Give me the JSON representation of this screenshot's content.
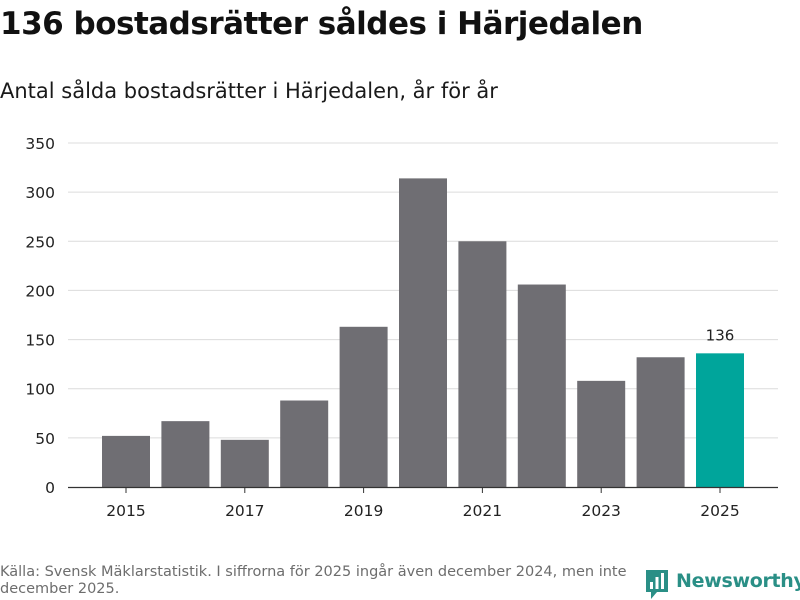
{
  "header": {
    "title": "136 bostadsrätter såldes i Härjedalen",
    "subtitle": "Antal sålda bostadsrätter i Härjedalen, år för år"
  },
  "footer": {
    "source": "Källa: Svensk Mäklarstatistik. I siffrorna för 2025 ingår även december 2024, men inte december 2025.",
    "brand": "Newsworthy"
  },
  "colors": {
    "bar": "#6f6e73",
    "highlight": "#00a59b",
    "grid": "#dcdcdc",
    "axis": "#333333",
    "brand": "#2a8f86"
  },
  "chart_data": {
    "type": "bar",
    "title": "136 bostadsrätter såldes i Härjedalen",
    "subtitle": "Antal sålda bostadsrätter i Härjedalen, år för år",
    "xlabel": "",
    "ylabel": "",
    "categories": [
      "2015",
      "2016",
      "2017",
      "2018",
      "2019",
      "2020",
      "2021",
      "2022",
      "2023",
      "2024",
      "2025"
    ],
    "values": [
      52,
      67,
      48,
      88,
      163,
      314,
      250,
      206,
      108,
      132,
      136
    ],
    "ylim": [
      0,
      350
    ],
    "yticks": [
      0,
      50,
      100,
      150,
      200,
      250,
      300,
      350
    ],
    "ytick_labels": [
      "0",
      "50",
      "100",
      "150",
      "200",
      "250",
      "300",
      "350"
    ],
    "xtick_labels": [
      "2015",
      "2017",
      "2019",
      "2021",
      "2023",
      "2025"
    ],
    "highlight_index": 10,
    "annotation": {
      "category": "2025",
      "text": "136"
    },
    "grid": true,
    "legend": "none"
  }
}
